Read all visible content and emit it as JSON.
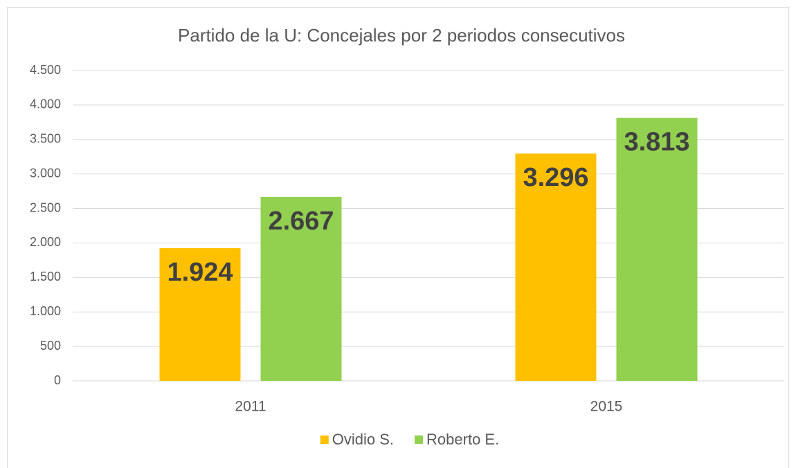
{
  "chart_data": {
    "type": "bar",
    "title": "Partido de la U: Concejales por 2 periodos consecutivos",
    "categories": [
      "2011",
      "2015"
    ],
    "series": [
      {
        "name": "Ovidio S.",
        "color": "#FFC000",
        "values": [
          1924,
          3296
        ],
        "value_labels": [
          "1.924",
          "3.296"
        ]
      },
      {
        "name": "Roberto E.",
        "color": "#92D050",
        "values": [
          2667,
          3813
        ],
        "value_labels": [
          "2.667",
          "3.813"
        ]
      }
    ],
    "ylim": [
      0,
      4500
    ],
    "yticks": [
      0,
      500,
      {
        "value": 1000,
        "label": "1.000"
      },
      {
        "value": 1500,
        "label": "1.500"
      },
      {
        "value": 2000,
        "label": "2.000"
      },
      {
        "value": 2500,
        "label": "2.500"
      },
      {
        "value": 3000,
        "label": "3.000"
      },
      {
        "value": 3500,
        "label": "3.500"
      },
      {
        "value": 4000,
        "label": "4.000"
      },
      {
        "value": 4500,
        "label": "4.500"
      }
    ],
    "grid": true,
    "legend": "bottom"
  }
}
